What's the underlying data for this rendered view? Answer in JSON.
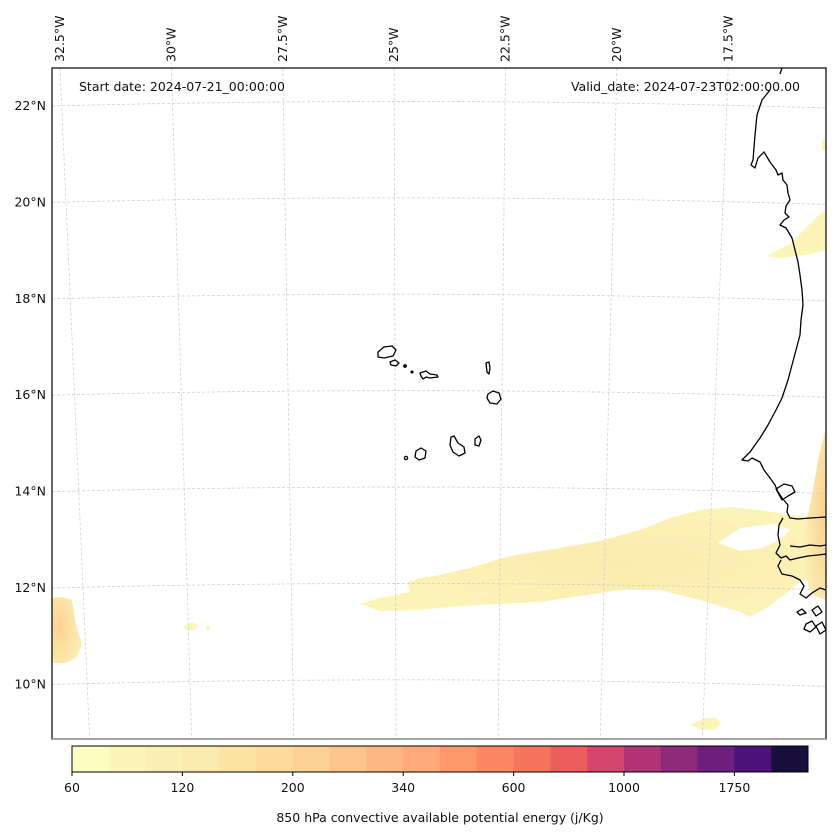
{
  "chart_data": {
    "type": "heatmap",
    "projection": "Lambert conformal (map)",
    "title": "",
    "annotations": {
      "start_date": "Start date: 2024-07-21_00:00:00",
      "valid_date": "Valid_date: 2024-07-23T02:00:00.00"
    },
    "lon_ticks": [
      {
        "value": -32.5,
        "label": "32.5°W"
      },
      {
        "value": -30.0,
        "label": "30°W"
      },
      {
        "value": -27.5,
        "label": "27.5°W"
      },
      {
        "value": -25.0,
        "label": "25°W"
      },
      {
        "value": -22.5,
        "label": "22.5°W"
      },
      {
        "value": -20.0,
        "label": "20°W"
      },
      {
        "value": -17.5,
        "label": "17.5°W"
      }
    ],
    "lat_ticks": [
      {
        "value": 22,
        "label": "22°N"
      },
      {
        "value": 20,
        "label": "20°N"
      },
      {
        "value": 18,
        "label": "18°N"
      },
      {
        "value": 16,
        "label": "16°N"
      },
      {
        "value": 14,
        "label": "14°N"
      },
      {
        "value": 12,
        "label": "12°N"
      },
      {
        "value": 10,
        "label": "10°N"
      }
    ],
    "extent": {
      "lon": [
        -33.5,
        -16.4
      ],
      "lat": [
        8.9,
        22.7
      ]
    },
    "grid": true,
    "colorbar": {
      "label": "850 hPa convective available potential energy (j/Kg)",
      "orientation": "horizontal",
      "placement": "bottom",
      "colormap": "magma_r",
      "tick_labels": [
        "60",
        "120",
        "200",
        "340",
        "600",
        "1000",
        "1750"
      ],
      "tick_positions_index": [
        0,
        3,
        6,
        9,
        12,
        15,
        18
      ],
      "levels_count": 20,
      "colors": [
        "#fcfdbf",
        "#fcf5b8",
        "#fbf0b4",
        "#fbeaae",
        "#fbe3a4",
        "#fcdb9b",
        "#fdd093",
        "#fec58a",
        "#fdb782",
        "#fea978",
        "#fd986b",
        "#fb8862",
        "#f6755d",
        "#ec5e5d",
        "#d5456c",
        "#b13576",
        "#8e2a79",
        "#6e1e7c",
        "#4d127a",
        "#180f3d"
      ]
    },
    "features": {
      "coastline": "West Africa (Mauritania, Senegal, Gambia, Guinea-Bissau) and Cape Verde islands",
      "cape_regions": [
        {
          "name": "ITCZ band",
          "lon_range": [
            -25.3,
            -17.0
          ],
          "lat_range": [
            11.8,
            13.3
          ],
          "approx_value": "60-120"
        },
        {
          "name": "West edge blob",
          "lon_range": [
            -33.5,
            -33.0
          ],
          "lat_range": [
            10.5,
            11.8
          ],
          "approx_value": "60-200"
        },
        {
          "name": "Continental interior",
          "lon_range": [
            -16.8,
            -16.4
          ],
          "lat_range": [
            11.8,
            14.8
          ],
          "approx_value": "60-200"
        },
        {
          "name": "Mauritania coastal strip",
          "lon_range": [
            -17.6,
            -16.5
          ],
          "lat_range": [
            18.8,
            20.0
          ],
          "approx_value": "60-80"
        }
      ]
    }
  }
}
